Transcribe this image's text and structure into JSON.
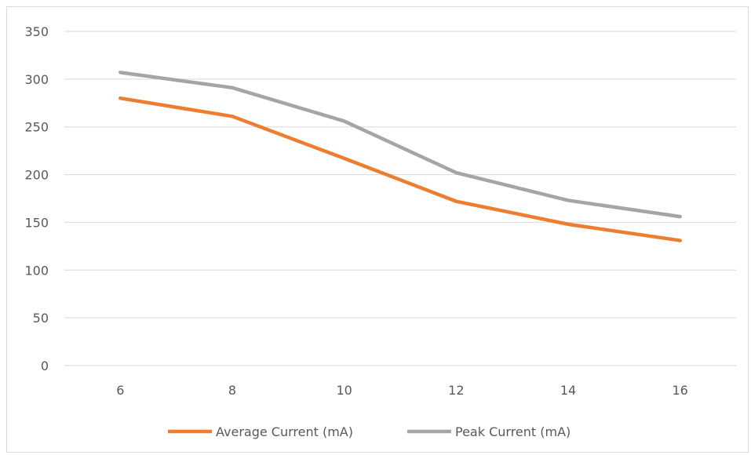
{
  "chart_data": {
    "type": "line",
    "title": "",
    "xlabel": "",
    "ylabel": "",
    "x": [
      6,
      8,
      10,
      12,
      14,
      16
    ],
    "ylim": [
      0,
      350
    ],
    "yticks": [
      0,
      50,
      100,
      150,
      200,
      250,
      300,
      350
    ],
    "grid": true,
    "legend": "bottom",
    "series": [
      {
        "name": "Average Current (mA)",
        "color": "#ed7d31",
        "values": [
          280,
          261,
          217,
          172,
          148,
          131
        ]
      },
      {
        "name": "Peak Current (mA)",
        "color": "#a5a5a5",
        "values": [
          307,
          291,
          256,
          202,
          173,
          156
        ]
      }
    ]
  }
}
